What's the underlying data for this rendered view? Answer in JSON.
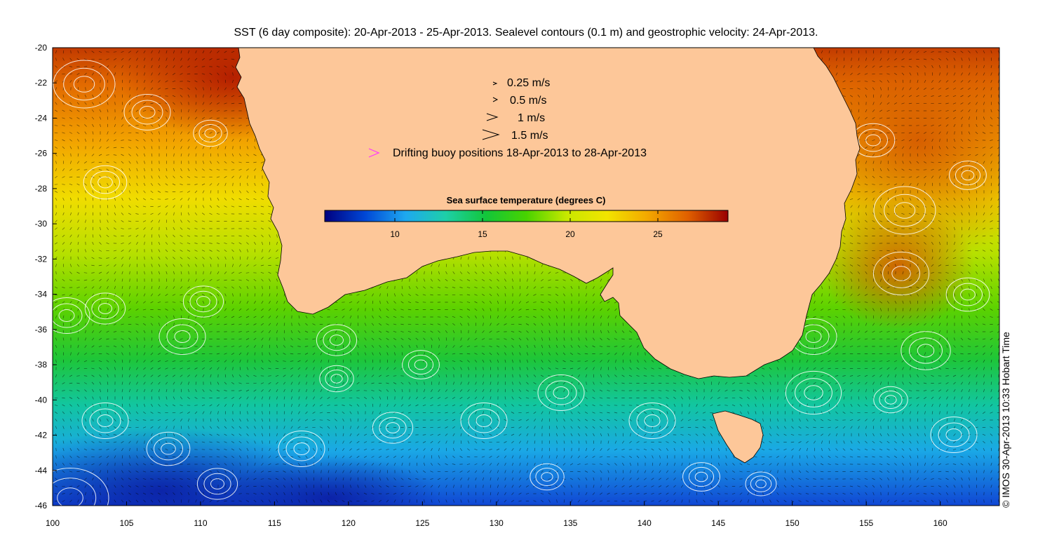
{
  "title": "SST (6 day composite): 20-Apr-2013 - 25-Apr-2013. Sealevel contours (0.1 m) and geostrophic velocity: 24-Apr-2013.",
  "credit": "© IMOS 30-Apr-2013 10:33 Hobart Time",
  "axes": {
    "x_ticks": [
      "100",
      "105",
      "110",
      "115",
      "120",
      "125",
      "130",
      "135",
      "140",
      "145",
      "150",
      "155",
      "160"
    ],
    "y_ticks": [
      "-20",
      "-22",
      "-24",
      "-26",
      "-28",
      "-30",
      "-32",
      "-34",
      "-36",
      "-38",
      "-40",
      "-42",
      "-44",
      "-46"
    ],
    "lon_range": [
      100,
      164
    ],
    "lat_range": [
      -46,
      -20
    ]
  },
  "legend": {
    "items": [
      "0.25 m/s",
      "0.5 m/s",
      "1 m/s",
      "1.5 m/s"
    ],
    "buoy": "Drifting buoy positions 18-Apr-2013 to 28-Apr-2013",
    "buoy_color": "#ff33ff"
  },
  "colorbar": {
    "title": "Sea surface temperature (degrees C)",
    "labels": [
      "10",
      "15",
      "20",
      "25"
    ],
    "range": [
      6,
      29
    ],
    "colors": [
      "#00007f",
      "#0047d6",
      "#1ea8f0",
      "#1ecfa8",
      "#12c63a",
      "#48d300",
      "#c8e800",
      "#f2e400",
      "#f3a800",
      "#e06000",
      "#990000"
    ]
  },
  "colors": {
    "land": "#fdc799",
    "contour": "#ffffff",
    "arrow": "#000000"
  }
}
